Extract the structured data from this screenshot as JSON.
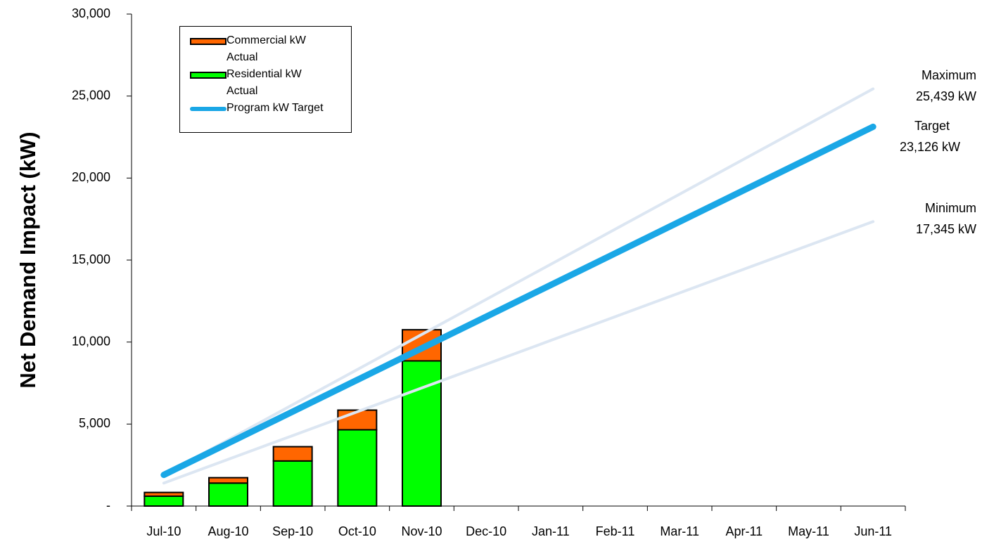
{
  "chart_data": {
    "type": "bar",
    "y_label": "Net Demand Impact (kW)",
    "categories": [
      "Jul-10",
      "Aug-10",
      "Sep-10",
      "Oct-10",
      "Nov-10",
      "Dec-10",
      "Jan-11",
      "Feb-11",
      "Mar-11",
      "Apr-11",
      "May-11",
      "Jun-11"
    ],
    "series": [
      {
        "name": "Commercial kW Actual",
        "color": "#ff6600",
        "stack": true,
        "values": [
          230,
          330,
          870,
          1200,
          1900,
          null,
          null,
          null,
          null,
          null,
          null,
          null
        ]
      },
      {
        "name": "Residential kW Actual",
        "color": "#00ff00",
        "stack": true,
        "values": [
          600,
          1400,
          2750,
          4650,
          8850,
          null,
          null,
          null,
          null,
          null,
          null,
          null
        ]
      },
      {
        "name": "Program kW Target",
        "color": "#1aa7e6",
        "kind": "line",
        "end_name": "Target",
        "end_label": "23,126 kW",
        "values": [
          1900,
          3830,
          5759,
          7689,
          9618,
          11548,
          13477,
          15407,
          17337,
          19266,
          21196,
          23126
        ]
      }
    ],
    "bounds": [
      {
        "name": "Maximum",
        "end_label": "25,439 kW",
        "color": "#dce6f2",
        "values": [
          1900,
          4040,
          6180,
          8320,
          10460,
          12600,
          14739,
          16879,
          19019,
          21159,
          23299,
          25439
        ]
      },
      {
        "name": "Minimum",
        "end_label": "17,345 kW",
        "color": "#dce6f2",
        "values": [
          1400,
          2850,
          4299,
          5749,
          7198,
          8648,
          10097,
          11547,
          12996,
          14446,
          15895,
          17345
        ]
      }
    ],
    "ylim": [
      0,
      30000
    ],
    "yticks": [
      {
        "value": 0,
        "label": "-"
      },
      {
        "value": 5000,
        "label": "5,000"
      },
      {
        "value": 10000,
        "label": "10,000"
      },
      {
        "value": 15000,
        "label": "15,000"
      },
      {
        "value": 20000,
        "label": "20,000"
      },
      {
        "value": 25000,
        "label": "25,000"
      },
      {
        "value": 30000,
        "label": "30,000"
      }
    ]
  }
}
